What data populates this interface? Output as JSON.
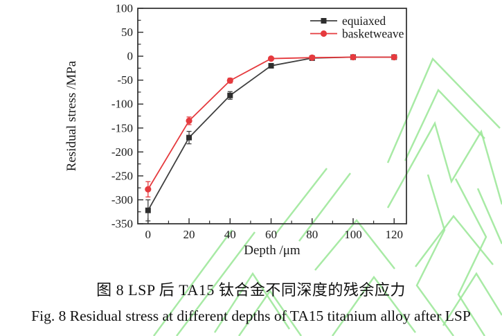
{
  "figure": {
    "captions": {
      "chinese": "图 8 LSP 后 TA15 钛合金不同深度的残余应力",
      "english": "Fig. 8 Residual stress at different depths of TA15 titanium alloy after LSP"
    },
    "watermark_color": "#9fe89b",
    "frame_color": "#2b2b2b",
    "text_color": "#1a1a1a"
  },
  "chart_data": {
    "type": "line",
    "title": "",
    "xlabel": "Depth /μm",
    "ylabel": "Residual stress /MPa",
    "xlim": [
      -5,
      126
    ],
    "ylim": [
      -350,
      100
    ],
    "x_ticks": [
      0,
      20,
      40,
      60,
      80,
      100,
      120
    ],
    "y_ticks": [
      100,
      50,
      0,
      -50,
      -100,
      -150,
      -200,
      -250,
      -300,
      -350
    ],
    "grid": false,
    "legend_position": "top-right-inside",
    "x": [
      0,
      20,
      40,
      60,
      80,
      100,
      120
    ],
    "series": [
      {
        "name": "equiaxed",
        "marker": "square",
        "color": "#3f3f3f",
        "marker_color": "#2e2e2e",
        "values": [
          -322,
          -170,
          -82,
          -20,
          -4,
          -2,
          -2
        ],
        "errors": [
          22,
          13,
          8,
          4,
          3,
          2,
          2
        ]
      },
      {
        "name": "basketweave",
        "marker": "circle",
        "color": "#e53a3e",
        "marker_color": "#e53a3e",
        "values": [
          -278,
          -135,
          -51,
          -5,
          -3,
          -2,
          -2
        ],
        "errors": [
          16,
          8,
          5,
          3,
          2,
          2,
          2
        ]
      }
    ]
  }
}
